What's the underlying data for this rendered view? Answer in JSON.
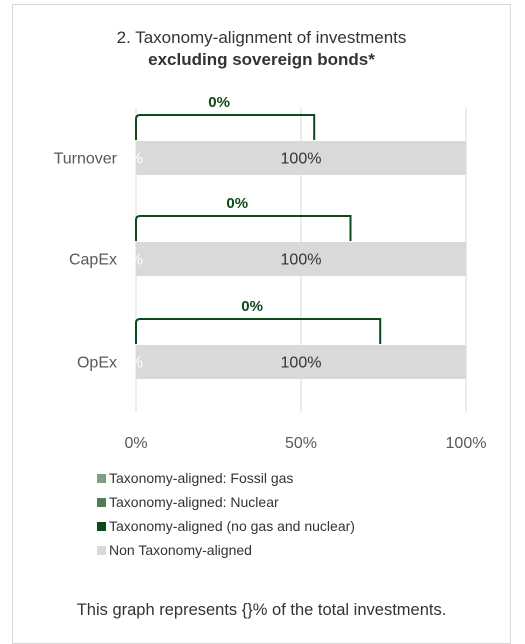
{
  "title": {
    "line1": "2. Taxonomy-alignment of investments",
    "line2": "excluding sovereign bonds*"
  },
  "chart_data": {
    "type": "bar",
    "orientation": "horizontal",
    "stacked": true,
    "categories": [
      "Turnover",
      "CapEx",
      "OpEx"
    ],
    "series": [
      {
        "name": "Taxonomy-aligned: Fossil gas",
        "values": [
          0,
          0,
          0
        ],
        "color": "#7f9f80"
      },
      {
        "name": "Taxonomy-aligned: Nuclear",
        "values": [
          0,
          0,
          0
        ],
        "color": "#4e7d52"
      },
      {
        "name": "Taxonomy-aligned (no gas and nuclear)",
        "values": [
          0,
          0,
          0
        ],
        "color": "#0d4a1a"
      },
      {
        "name": "Non Taxonomy-aligned",
        "values": [
          100,
          100,
          100
        ],
        "color": "#d9d9d9"
      }
    ],
    "data_labels": {
      "aligned": [
        "0%",
        "0%",
        "0%"
      ],
      "non_aligned": [
        "100%",
        "100%",
        "100%"
      ]
    },
    "bracket_labels": [
      "0%",
      "0%",
      "0%"
    ],
    "bracket_extent": [
      54,
      65,
      74
    ],
    "xlim": [
      0,
      100
    ],
    "xticks": [
      "0%",
      "50%",
      "100%"
    ],
    "grid": true,
    "legend_position": "bottom"
  },
  "footnote": "This graph represents {}% of the total investments.",
  "colors": {
    "bracket": "#0d4a1a",
    "grid": "#d9d9d9",
    "axis": "#d9d9d9",
    "bracket_label": "#0d4a1a",
    "aligned_label": "#ffffff",
    "non_aligned_label": "#333333"
  }
}
